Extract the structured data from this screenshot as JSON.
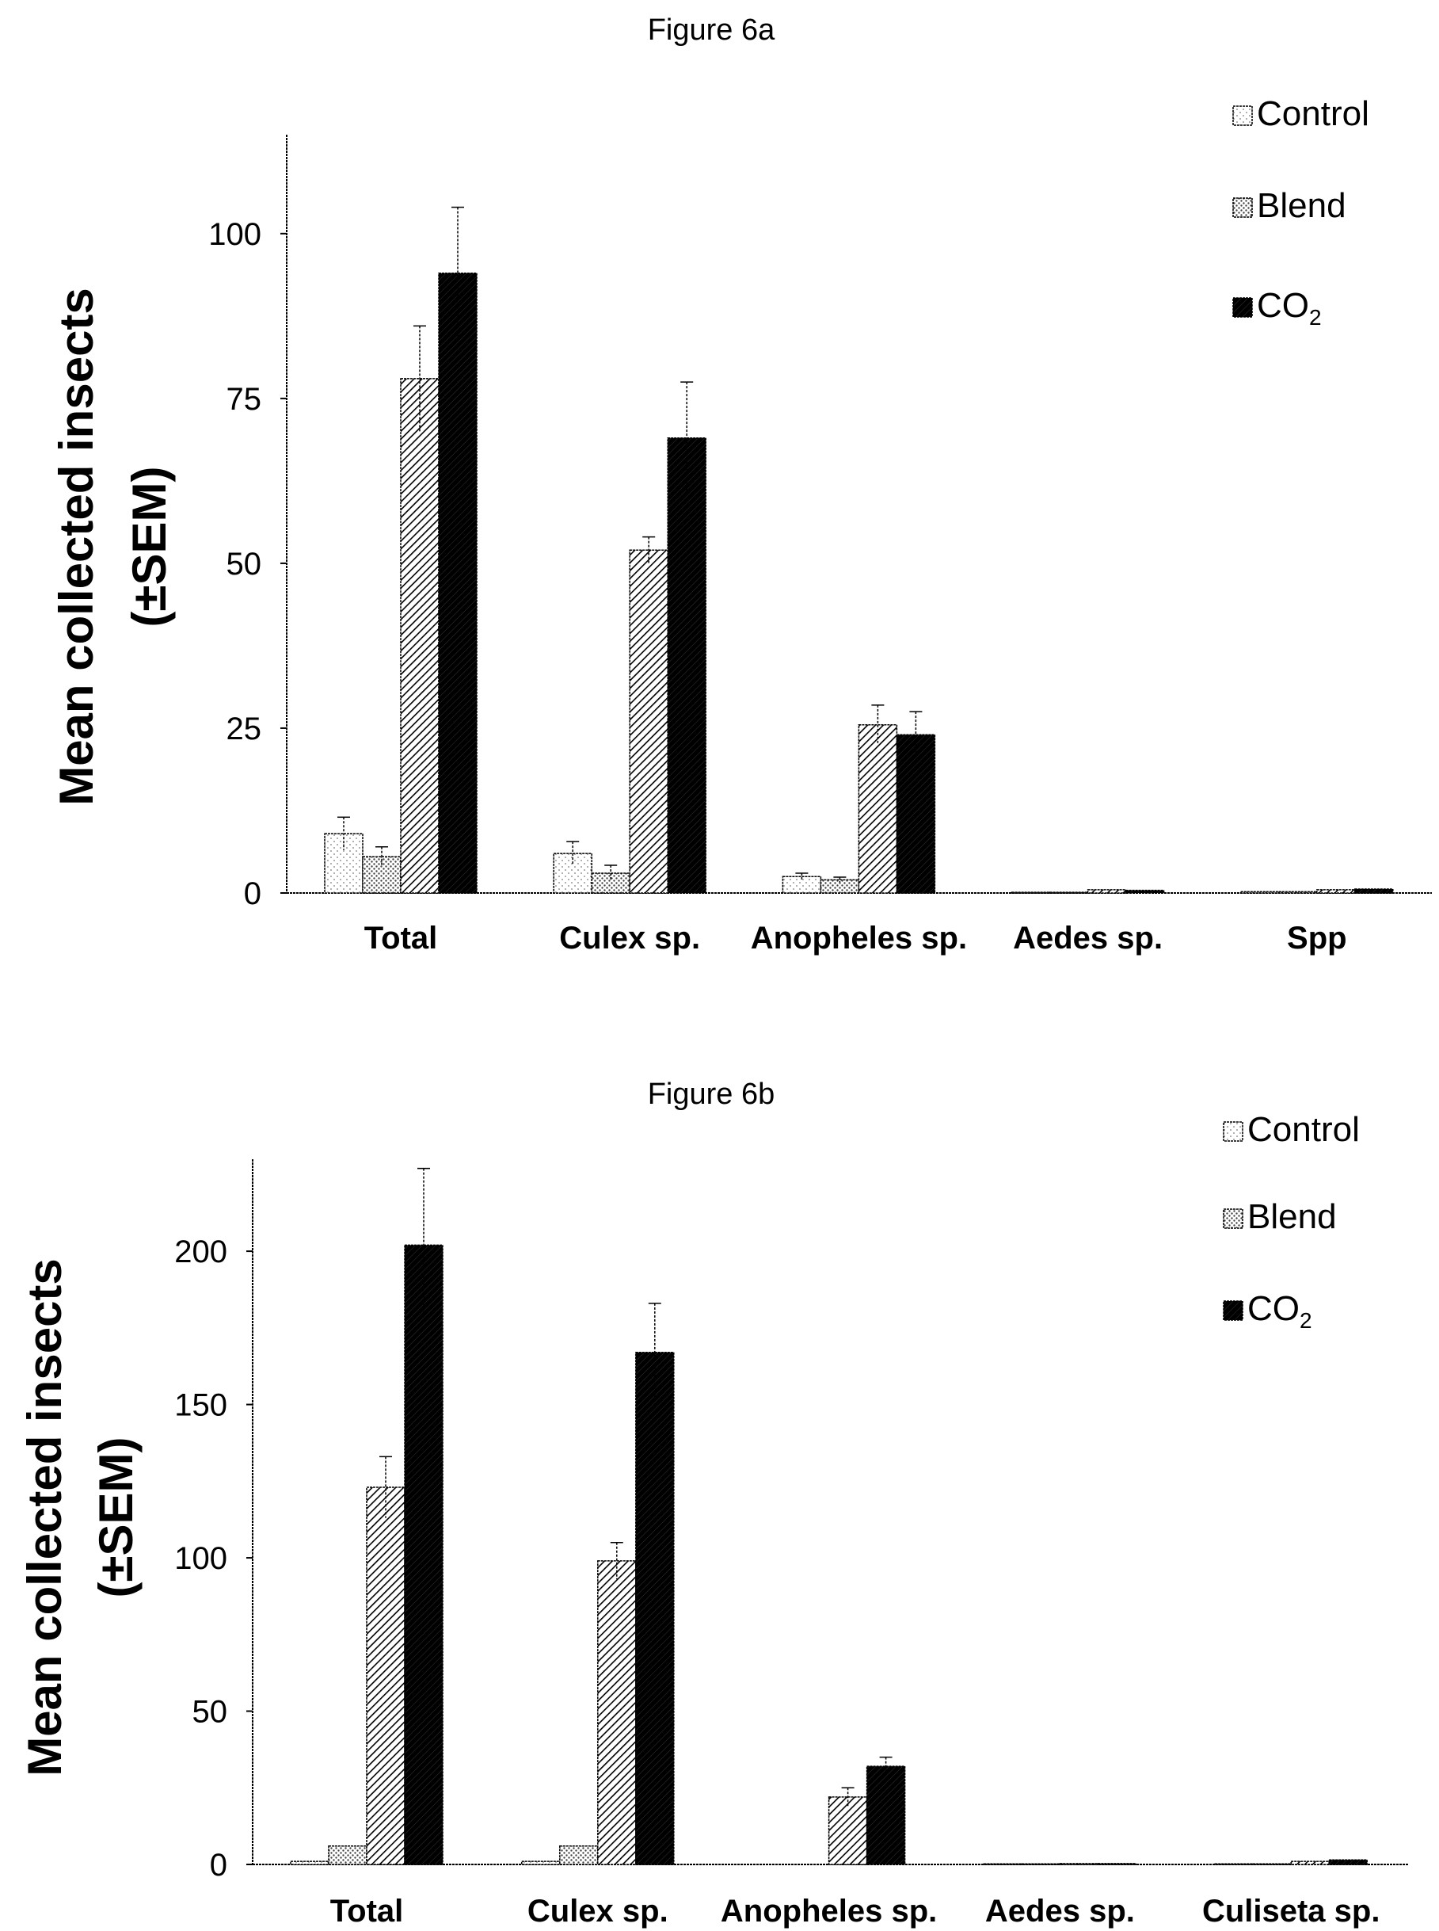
{
  "figures": {
    "fig_a": {
      "title": "Figure 6a"
    },
    "fig_b": {
      "title": "Figure 6b"
    }
  },
  "patterns": {
    "Control": "white-dotted",
    "Blend": "stipple",
    "Hatched": "diagonal-hatch",
    "CO2": "solid-black"
  },
  "colors": {
    "ink": "#000000",
    "background": "#ffffff"
  },
  "chart_data": [
    {
      "type": "bar",
      "title": "Figure 6a",
      "ylabel": [
        "Mean collected insects",
        "(±SEM)"
      ],
      "xlabel": "",
      "categories": [
        "Total",
        "Culex sp.",
        "Anopheles sp.",
        "Aedes sp.",
        "Spp"
      ],
      "yticks": [
        0,
        25,
        50,
        75,
        100
      ],
      "ylim": [
        0,
        115
      ],
      "grid": false,
      "legend": {
        "placement": "top-right",
        "entries": [
          {
            "label": "Control",
            "pattern": "Control"
          },
          {
            "label": "Blend",
            "pattern": "Blend"
          },
          {
            "label": "CO",
            "sub": "2",
            "pattern": "CO2"
          }
        ]
      },
      "series": [
        {
          "pattern": "Control",
          "values": [
            9,
            6,
            2.5,
            0.1,
            0.2
          ],
          "err": [
            2.5,
            1.8,
            0.5,
            0,
            0
          ]
        },
        {
          "pattern": "Blend",
          "values": [
            5.5,
            3,
            2,
            0.1,
            0.2
          ],
          "err": [
            1.5,
            1.2,
            0.4,
            0,
            0
          ]
        },
        {
          "pattern": "Hatched",
          "values": [
            78,
            52,
            25.5,
            0.5,
            0.5
          ],
          "err": [
            8,
            2,
            3,
            0,
            0
          ]
        },
        {
          "pattern": "CO2",
          "values": [
            94,
            69,
            24,
            0.4,
            0.6
          ],
          "err": [
            10,
            8.5,
            3.5,
            0,
            0
          ]
        }
      ]
    },
    {
      "type": "bar",
      "title": "Figure 6b",
      "ylabel": [
        "Mean collected insects",
        "(±SEM)"
      ],
      "xlabel": "",
      "categories": [
        "Total",
        "Culex sp.",
        "Anopheles sp.",
        "Aedes sp.",
        "Culiseta sp."
      ],
      "yticks": [
        0,
        50,
        100,
        150,
        200
      ],
      "ylim": [
        0,
        230
      ],
      "grid": false,
      "legend": {
        "placement": "top-right",
        "entries": [
          {
            "label": "Control",
            "pattern": "Control"
          },
          {
            "label": "Blend",
            "pattern": "Blend"
          },
          {
            "label": "CO",
            "sub": "2",
            "pattern": "CO2"
          }
        ]
      },
      "series": [
        {
          "pattern": "Control",
          "values": [
            1,
            1,
            0,
            0.2,
            0.2
          ],
          "err": [
            0,
            0,
            0,
            0,
            0
          ]
        },
        {
          "pattern": "Blend",
          "values": [
            6,
            6,
            0,
            0.2,
            0.2
          ],
          "err": [
            0,
            0,
            0,
            0,
            0
          ]
        },
        {
          "pattern": "Hatched",
          "values": [
            123,
            99,
            22,
            0.3,
            1
          ],
          "err": [
            10,
            6,
            3,
            0,
            0
          ]
        },
        {
          "pattern": "CO2",
          "values": [
            202,
            167,
            32,
            0.3,
            1.5
          ],
          "err": [
            25,
            16,
            3,
            0,
            0
          ]
        }
      ]
    }
  ]
}
